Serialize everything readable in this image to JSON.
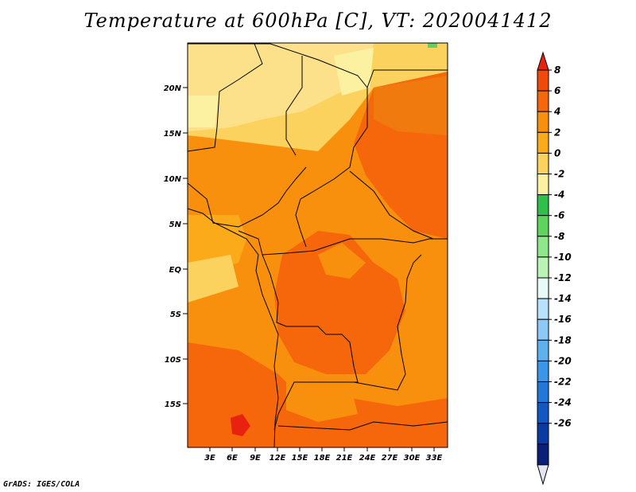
{
  "title": "Temperature at 600hPa [C], VT: 2020041412",
  "credit": "GrADS: IGES/COLA",
  "map": {
    "lat_ticks": [
      "20N",
      "15N",
      "10N",
      "5N",
      "EQ",
      "5S",
      "10S",
      "15S"
    ],
    "lon_ticks": [
      "3E",
      "6E",
      "9E",
      "12E",
      "15E",
      "18E",
      "21E",
      "24E",
      "27E",
      "30E",
      "33E"
    ]
  },
  "colorbar": {
    "labels": [
      "8",
      "6",
      "4",
      "2",
      "0",
      "-2",
      "-4",
      "-6",
      "-8",
      "-10",
      "-12",
      "-14",
      "-16",
      "-18",
      "-20",
      "-22",
      "-24",
      "-26"
    ],
    "colors": [
      "#e8220e",
      "#f04a0a",
      "#f5670a",
      "#f8900e",
      "#fbaa1a",
      "#fcd25f",
      "#fcf1a0",
      "#2ec04a",
      "#5ed45e",
      "#8ee88a",
      "#b9f4b4",
      "#e6fbf6",
      "#b8e2fb",
      "#8cc9f6",
      "#5fb0ee",
      "#3a96e6",
      "#2178d9",
      "#1258c2",
      "#0a3ba3",
      "#0a1f7a",
      "#e4e4f4"
    ]
  }
}
